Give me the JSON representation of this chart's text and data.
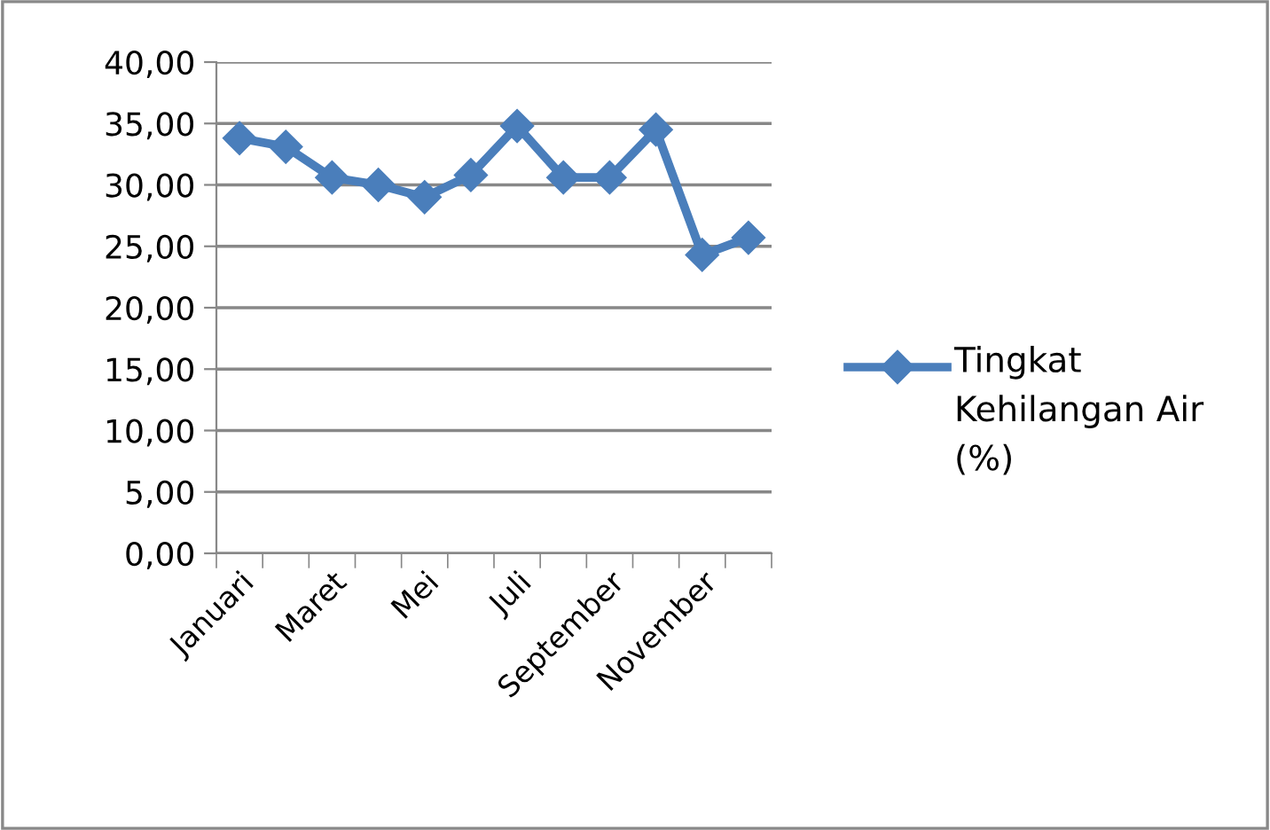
{
  "chart_data": {
    "type": "line",
    "categories": [
      "Januari",
      null,
      "Maret",
      null,
      "Mei",
      null,
      "Juli",
      null,
      "September",
      null,
      "November",
      null
    ],
    "series": [
      {
        "name": "Tingkat Kehilangan Air (%)",
        "color": "#4a7ebb",
        "values": [
          33.8,
          33.1,
          30.6,
          30.0,
          29.0,
          30.8,
          34.8,
          30.6,
          30.6,
          34.5,
          24.3,
          25.7
        ]
      }
    ],
    "ylim": [
      0,
      40
    ],
    "yticks": [
      {
        "value": 0,
        "label": "0,00"
      },
      {
        "value": 5,
        "label": "5,00"
      },
      {
        "value": 10,
        "label": "10,00"
      },
      {
        "value": 15,
        "label": "15,00"
      },
      {
        "value": 20,
        "label": "20,00"
      },
      {
        "value": 25,
        "label": "25,00"
      },
      {
        "value": 30,
        "label": "30,00"
      },
      {
        "value": 35,
        "label": "35,00"
      },
      {
        "value": 40,
        "label": "40,00"
      }
    ],
    "grid": "y",
    "legend": "right",
    "marker": "diamond",
    "line_style": "solid"
  }
}
